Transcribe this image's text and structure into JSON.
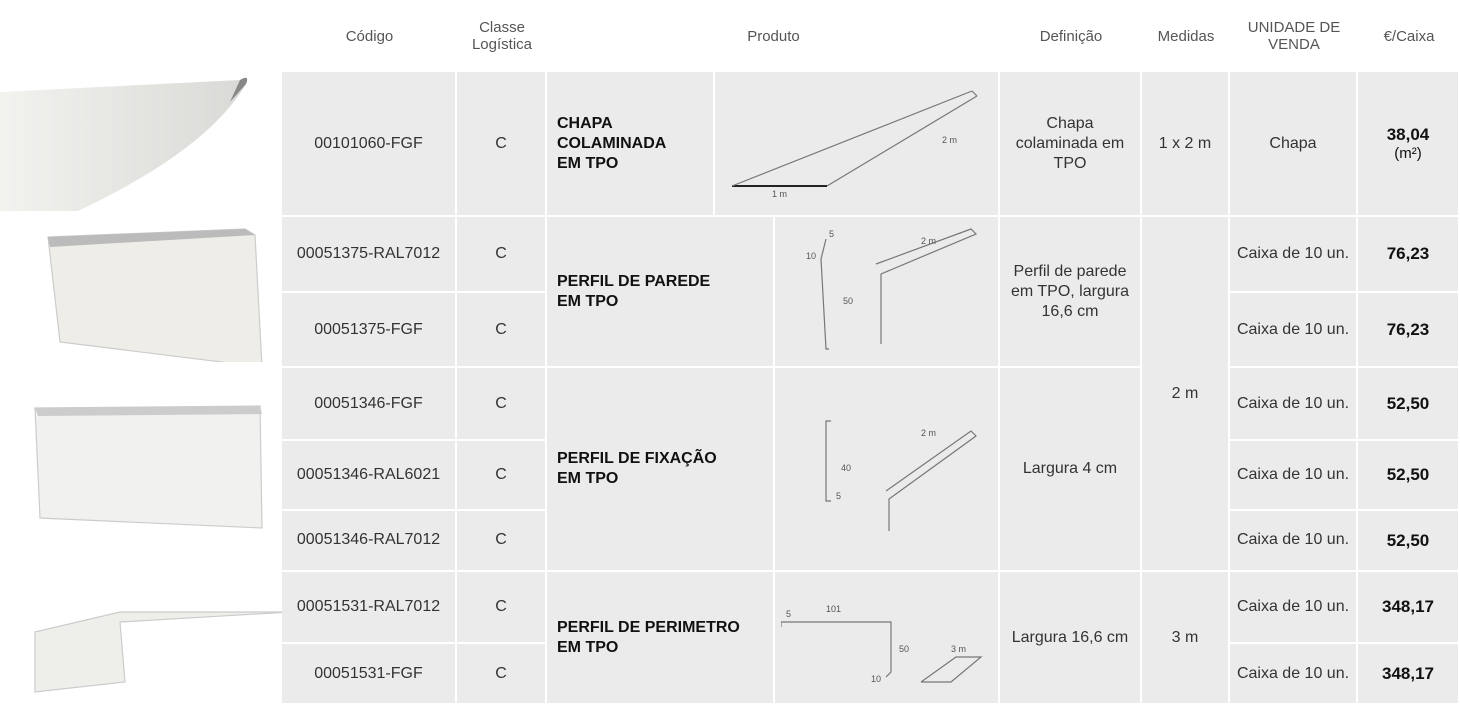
{
  "header": {
    "code": "Código",
    "class": "Classe Logística",
    "product": "Produto",
    "definition": "Definição",
    "measures": "Medidas",
    "unit": "UNIDADE DE VENDA",
    "price": "€/Caixa"
  },
  "products": [
    {
      "name": "CHAPA\nCOLAMINADA\nEM TPO",
      "definition": "Chapa colaminada em TPO",
      "measure": "1 x 2 m",
      "drawing_labels": [
        "2 m",
        "1 m"
      ],
      "items": [
        {
          "code": "00101060-FGF",
          "class": "C",
          "unit": "Chapa",
          "price": "38,04",
          "price_note": "(m²)"
        }
      ]
    },
    {
      "name": "PERFIL DE PAREDE\nEM TPO",
      "definition": "Perfil de parede em TPO, largura 16,6 cm",
      "measure": "2 m",
      "drawing_labels": [
        "5",
        "10",
        "50",
        "2 m"
      ],
      "items": [
        {
          "code": "00051375-RAL7012",
          "class": "C",
          "unit": "Caixa de 10 un.",
          "price": "76,23"
        },
        {
          "code": "00051375-FGF",
          "class": "C",
          "unit": "Caixa de 10 un.",
          "price": "76,23"
        }
      ]
    },
    {
      "name": "PERFIL DE FIXAÇÃO\nEM TPO",
      "definition": "Largura 4 cm",
      "drawing_labels": [
        "40",
        "5",
        "2 m"
      ],
      "items": [
        {
          "code": "00051346-FGF",
          "class": "C",
          "unit": "Caixa de 10 un.",
          "price": "52,50"
        },
        {
          "code": "00051346-RAL6021",
          "class": "C",
          "unit": "Caixa de 10 un.",
          "price": "52,50"
        },
        {
          "code": "00051346-RAL7012",
          "class": "C",
          "unit": "Caixa de 10 un.",
          "price": "52,50"
        }
      ]
    },
    {
      "name": "PERFIL DE PERIMETRO\nEM TPO",
      "definition": "Largura 16,6 cm",
      "measure": "3 m",
      "drawing_labels": [
        "101",
        "5",
        "50",
        "10",
        "3 m"
      ],
      "items": [
        {
          "code": "00051531-RAL7012",
          "class": "C",
          "unit": "Caixa de 10 un.",
          "price": "348,17"
        },
        {
          "code": "00051531-FGF",
          "class": "C",
          "unit": "Caixa de 10 un.",
          "price": "348,17"
        }
      ]
    }
  ]
}
